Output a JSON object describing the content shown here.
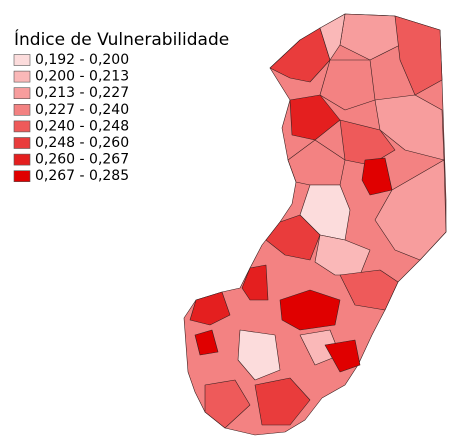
{
  "legend": {
    "title": "Índice de Vulnerabilidade",
    "items": [
      {
        "label": "0,192 - 0,200",
        "color": "#fcdcdc"
      },
      {
        "label": "0,200 - 0,213",
        "color": "#fab8b8"
      },
      {
        "label": "0,213 - 0,227",
        "color": "#f79d9d"
      },
      {
        "label": "0,227 - 0,240",
        "color": "#f38282"
      },
      {
        "label": "0,240 - 0,248",
        "color": "#ee5a5a"
      },
      {
        "label": "0,248 - 0,260",
        "color": "#e93c3c"
      },
      {
        "label": "0,260 - 0,267",
        "color": "#e41f1f"
      },
      {
        "label": "0,267 - 0,285",
        "color": "#e00000"
      }
    ]
  }
}
